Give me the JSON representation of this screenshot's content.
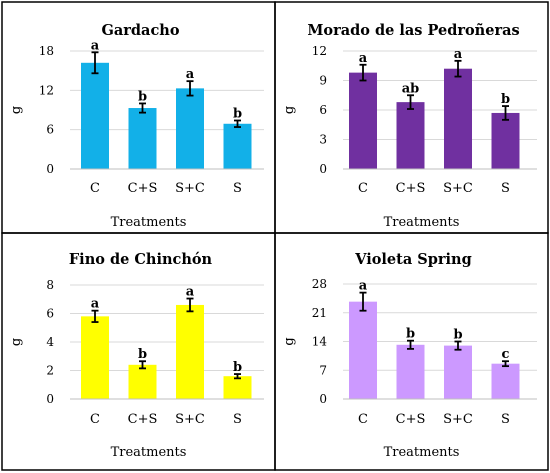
{
  "chart_data": [
    {
      "type": "bar",
      "title": "Gardacho",
      "xlabel": "Treatments",
      "ylabel": "g",
      "categories": [
        "C",
        "C+S",
        "S+C",
        "S"
      ],
      "values": [
        16.2,
        9.3,
        12.3,
        6.9
      ],
      "errors": [
        1.6,
        0.7,
        1.1,
        0.5
      ],
      "letters": [
        "a",
        "b",
        "a",
        "b"
      ],
      "ylim": [
        0,
        18
      ],
      "yticks": [
        "0",
        "6",
        "12",
        "18"
      ],
      "color": "#12b0e8"
    },
    {
      "type": "bar",
      "title": "Morado de las Pedroñeras",
      "xlabel": "Treatments",
      "ylabel": "g",
      "categories": [
        "C",
        "C+S",
        "S+C",
        "S"
      ],
      "values": [
        9.8,
        6.8,
        10.2,
        5.7
      ],
      "errors": [
        0.8,
        0.7,
        0.8,
        0.7
      ],
      "letters": [
        "a",
        "ab",
        "a",
        "b"
      ],
      "ylim": [
        0,
        12
      ],
      "yticks": [
        "0",
        "3",
        "6",
        "9",
        "12"
      ],
      "color": "#7030a0"
    },
    {
      "type": "bar",
      "title": "Fino de Chinchón",
      "xlabel": "Treatments",
      "ylabel": "g",
      "categories": [
        "C",
        "C+S",
        "S+C",
        "S"
      ],
      "values": [
        5.8,
        2.4,
        6.6,
        1.6
      ],
      "errors": [
        0.4,
        0.25,
        0.45,
        0.15
      ],
      "letters": [
        "a",
        "b",
        "a",
        "b"
      ],
      "ylim": [
        0,
        8
      ],
      "yticks": [
        "0",
        "2",
        "4",
        "6",
        "8"
      ],
      "color": "#ffff00"
    },
    {
      "type": "bar",
      "title": "Violeta Spring",
      "xlabel": "Treatments",
      "ylabel": "g",
      "categories": [
        "C",
        "C+S",
        "S+C",
        "S"
      ],
      "values": [
        23.7,
        13.2,
        13.0,
        8.6
      ],
      "errors": [
        2.2,
        1.0,
        1.0,
        0.6
      ],
      "letters": [
        "a",
        "b",
        "b",
        "c"
      ],
      "ylim": [
        0,
        28
      ],
      "yticks": [
        "0",
        "7",
        "14",
        "21",
        "28"
      ],
      "color": "#cc99ff"
    }
  ]
}
